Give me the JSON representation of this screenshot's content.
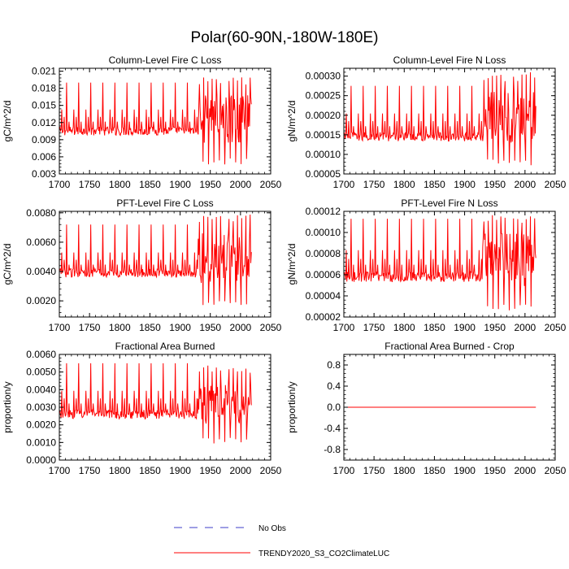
{
  "figure_title": "Polar(60-90N,-180W-180E)",
  "colors": {
    "model": "#ff0000",
    "obs": "#3c3cc8",
    "axis": "#000000",
    "background": "#ffffff"
  },
  "legend": {
    "obs_label": "No Obs",
    "model_label": "TRENDY2020_S3_CO2ClimateLUC"
  },
  "chart_data": [
    {
      "type": "line",
      "title": "Column-Level Fire C Loss",
      "ylabel": "gC/m^2/d",
      "xlabel": "",
      "xlim": [
        1700,
        2050
      ],
      "ylim": [
        0.003,
        0.0215
      ],
      "x_ticks": [
        "1700",
        "1750",
        "1800",
        "1850",
        "1900",
        "1950",
        "2000",
        "2050"
      ],
      "y_ticks": [
        {
          "value": 0.003,
          "label": "0.003"
        },
        {
          "value": 0.006,
          "label": "0.006"
        },
        {
          "value": 0.009,
          "label": "0.009"
        },
        {
          "value": 0.012,
          "label": "0.012"
        },
        {
          "value": 0.015,
          "label": "0.015"
        },
        {
          "value": 0.018,
          "label": "0.018"
        },
        {
          "value": 0.021,
          "label": "0.021"
        }
      ],
      "series_params": {
        "x_start": 1700,
        "x_end": 2018,
        "base": 0.0105,
        "peak": 0.019,
        "secondary": 0.013,
        "low_late": 0.0045,
        "high_late": 0.02
      }
    },
    {
      "type": "line",
      "title": "Column-Level Fire N Loss",
      "ylabel": "gN/m^2/d",
      "xlabel": "",
      "xlim": [
        1700,
        2050
      ],
      "ylim": [
        5e-05,
        0.00032
      ],
      "x_ticks": [
        "1700",
        "1750",
        "1800",
        "1850",
        "1900",
        "1950",
        "2000",
        "2050"
      ],
      "y_ticks": [
        {
          "value": 5e-05,
          "label": "0.00005"
        },
        {
          "value": 0.0001,
          "label": "0.00010"
        },
        {
          "value": 0.00015,
          "label": "0.00015"
        },
        {
          "value": 0.0002,
          "label": "0.00020"
        },
        {
          "value": 0.00025,
          "label": "0.00025"
        },
        {
          "value": 0.0003,
          "label": "0.00030"
        }
      ],
      "series_params": {
        "x_start": 1700,
        "x_end": 2018,
        "base": 0.000145,
        "peak": 0.000275,
        "secondary": 0.000185,
        "low_late": 7e-05,
        "high_late": 0.00031
      }
    },
    {
      "type": "line",
      "title": "PFT-Level Fire C Loss",
      "ylabel": "gC/m^2/d",
      "xlabel": "",
      "xlim": [
        1700,
        2050
      ],
      "ylim": [
        0.0009,
        0.0081
      ],
      "x_ticks": [
        "1700",
        "1750",
        "1800",
        "1850",
        "1900",
        "1950",
        "2000",
        "2050"
      ],
      "y_ticks": [
        {
          "value": 0.002,
          "label": "0.0020"
        },
        {
          "value": 0.004,
          "label": "0.0040"
        },
        {
          "value": 0.006,
          "label": "0.0060"
        },
        {
          "value": 0.008,
          "label": "0.0080"
        }
      ],
      "series_params": {
        "x_start": 1700,
        "x_end": 2018,
        "base": 0.0039,
        "peak": 0.0072,
        "secondary": 0.0048,
        "low_late": 0.0016,
        "high_late": 0.0079
      }
    },
    {
      "type": "line",
      "title": "PFT-Level Fire N Loss",
      "ylabel": "gN/m^2/d",
      "xlabel": "",
      "xlim": [
        1700,
        2050
      ],
      "ylim": [
        2e-05,
        0.00012
      ],
      "x_ticks": [
        "1700",
        "1750",
        "1800",
        "1850",
        "1900",
        "1950",
        "2000",
        "2050"
      ],
      "y_ticks": [
        {
          "value": 2e-05,
          "label": "0.00002"
        },
        {
          "value": 4e-05,
          "label": "0.00004"
        },
        {
          "value": 6e-05,
          "label": "0.00006"
        },
        {
          "value": 8e-05,
          "label": "0.00008"
        },
        {
          "value": 0.0001,
          "label": "0.00010"
        },
        {
          "value": 0.00012,
          "label": "0.00012"
        }
      ],
      "series_params": {
        "x_start": 1700,
        "x_end": 2018,
        "base": 5.8e-05,
        "peak": 0.000113,
        "secondary": 7.5e-05,
        "low_late": 2.6e-05,
        "high_late": 0.000118
      }
    },
    {
      "type": "line",
      "title": "Fractional Area Burned",
      "ylabel": "proportion/y",
      "xlabel": "",
      "xlim": [
        1700,
        2050
      ],
      "ylim": [
        0.0,
        0.006
      ],
      "x_ticks": [
        "1700",
        "1750",
        "1800",
        "1850",
        "1900",
        "1950",
        "2000",
        "2050"
      ],
      "y_ticks": [
        {
          "value": 0.0,
          "label": "0.0000"
        },
        {
          "value": 0.001,
          "label": "0.0010"
        },
        {
          "value": 0.002,
          "label": "0.0020"
        },
        {
          "value": 0.003,
          "label": "0.0030"
        },
        {
          "value": 0.004,
          "label": "0.0040"
        },
        {
          "value": 0.005,
          "label": "0.0050"
        },
        {
          "value": 0.006,
          "label": "0.0060"
        }
      ],
      "series_params": {
        "x_start": 1700,
        "x_end": 2018,
        "base": 0.0026,
        "peak": 0.0055,
        "secondary": 0.0035,
        "low_late": 0.0009,
        "high_late": 0.0054
      }
    },
    {
      "type": "line",
      "title": "Fractional Area Burned - Crop",
      "ylabel": "proportion/y",
      "xlabel": "",
      "xlim": [
        1700,
        2050
      ],
      "ylim": [
        -1.0,
        1.0
      ],
      "x_ticks": [
        "1700",
        "1750",
        "1800",
        "1850",
        "1900",
        "1950",
        "2000",
        "2050"
      ],
      "y_ticks": [
        {
          "value": -0.8,
          "label": "-0.8"
        },
        {
          "value": -0.4,
          "label": "-0.4"
        },
        {
          "value": 0.0,
          "label": "0.0"
        },
        {
          "value": 0.4,
          "label": "0.4"
        },
        {
          "value": 0.8,
          "label": "0.8"
        }
      ],
      "series_params": {
        "x_start": 1700,
        "x_end": 2018,
        "constant": 0.0
      }
    }
  ]
}
